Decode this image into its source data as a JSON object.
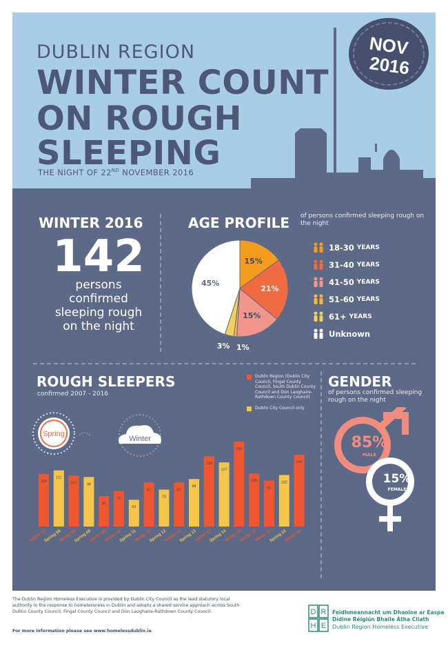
{
  "header": {
    "region": "DUBLIN REGION",
    "title_lines": [
      "WINTER COUNT",
      "ON ROUGH",
      "SLEEPING"
    ],
    "date_prefix": "THE NIGHT OF 22",
    "date_sup": "ND",
    "date_suffix": " NOVEMBER 2016",
    "stamp_month": "NOV",
    "stamp_year": "2016"
  },
  "winter": {
    "title": "WINTER 2016",
    "count": "142",
    "description": "persons confirmed sleeping rough on the night"
  },
  "age_profile": {
    "title": "AGE PROFILE",
    "subtitle": "of persons confirmed sleeping rough on the night",
    "slices": [
      {
        "label": "18-30",
        "unit": "YEARS",
        "value": 15,
        "text": "15%",
        "color": "#f59c1e"
      },
      {
        "label": "31-40",
        "unit": "YEARS",
        "value": 21,
        "text": "21%",
        "color": "#f06a42"
      },
      {
        "label": "41-50",
        "unit": "YEARS",
        "value": 15,
        "text": "15%",
        "color": "#f2958a"
      },
      {
        "label": "51-60",
        "unit": "YEARS",
        "value": 1,
        "text": "1%",
        "color": "#f5b73d"
      },
      {
        "label": "61+",
        "unit": "YEARS",
        "value": 3,
        "text": "3%",
        "color": "#f3cf5d"
      },
      {
        "label": "Unknown",
        "unit": "",
        "value": 45,
        "text": "45%",
        "color": "#ffffff"
      }
    ]
  },
  "rough_sleepers": {
    "title": "ROUGH SLEEPERS",
    "subtitle": "confirmed 2007 - 2016",
    "spring_label": "Spring",
    "winter_label": "Winter",
    "legend": [
      {
        "text": "Dublin Region (Dublin City Council, Fingal County Council, South Dublin County Council and Dún Laoghaire-Rathdown County Council)",
        "color": "#f0572f"
      },
      {
        "text": "Dublin City Council only",
        "color": "#f5c64a"
      }
    ]
  },
  "chart_data": {
    "type": "bar",
    "title": "ROUGH SLEEPERS",
    "subtitle": "confirmed 2007 - 2016",
    "categories": [
      "Winter 07",
      "Spring 08",
      "Winter 08",
      "Spring 09",
      "Winter 09",
      "Winter 10",
      "Spring 11",
      "Winter 11",
      "Spring 12",
      "Winter 12",
      "Spring 13",
      "Winter 13",
      "Spring 14",
      "Winter 14",
      "Winter 15",
      "Winter 15",
      "Spring 16",
      "Winter 16"
    ],
    "values": [
      104,
      111,
      101,
      98,
      60,
      70,
      53,
      87,
      73,
      87,
      94,
      139,
      127,
      168,
      105,
      91,
      102,
      142
    ],
    "colors": [
      "#f0572f",
      "#f5c64a",
      "#f0572f",
      "#f5c64a",
      "#f0572f",
      "#f0572f",
      "#f5c64a",
      "#f0572f",
      "#f5c64a",
      "#f0572f",
      "#f5c64a",
      "#f0572f",
      "#f5c64a",
      "#f0572f",
      "#f0572f",
      "#f0572f",
      "#f5c64a",
      "#f0572f"
    ],
    "series": [
      {
        "name": "Dublin Region (Dublin City Council, Fingal County Council, South Dublin County Council and Dún Laoghaire-Rathdown County Council)",
        "color": "#f0572f"
      },
      {
        "name": "Dublin City Council only",
        "color": "#f5c64a"
      }
    ],
    "ylim": [
      0,
      180
    ],
    "grid": false
  },
  "gender": {
    "title": "GENDER",
    "subtitle": "of persons confirmed sleeping rough on the night",
    "male_pct": "85%",
    "male_label": "MALE",
    "female_pct": "15%",
    "female_label": "FEMALE",
    "male_color": "#f08d7e"
  },
  "footer": {
    "text": "The Dublin Region Homeless Executive is provided by Dublin City Council as the lead statutory local authority in the response to homelessness in Dublin and adopts a shared service approach across South Dublin County Council, Fingal County Council and Dún Laoghaire-Rathdown County Council.",
    "more_info": "For more information please see www.homelessdublin.ie",
    "logo_letters": "DRHE",
    "logo_lines": [
      "Feidhmeannacht um Dhaoine ar Easpa",
      "Dídine Réigiún Bhaile Átha Cliath",
      "Dublin Region Homeless Executive"
    ]
  }
}
